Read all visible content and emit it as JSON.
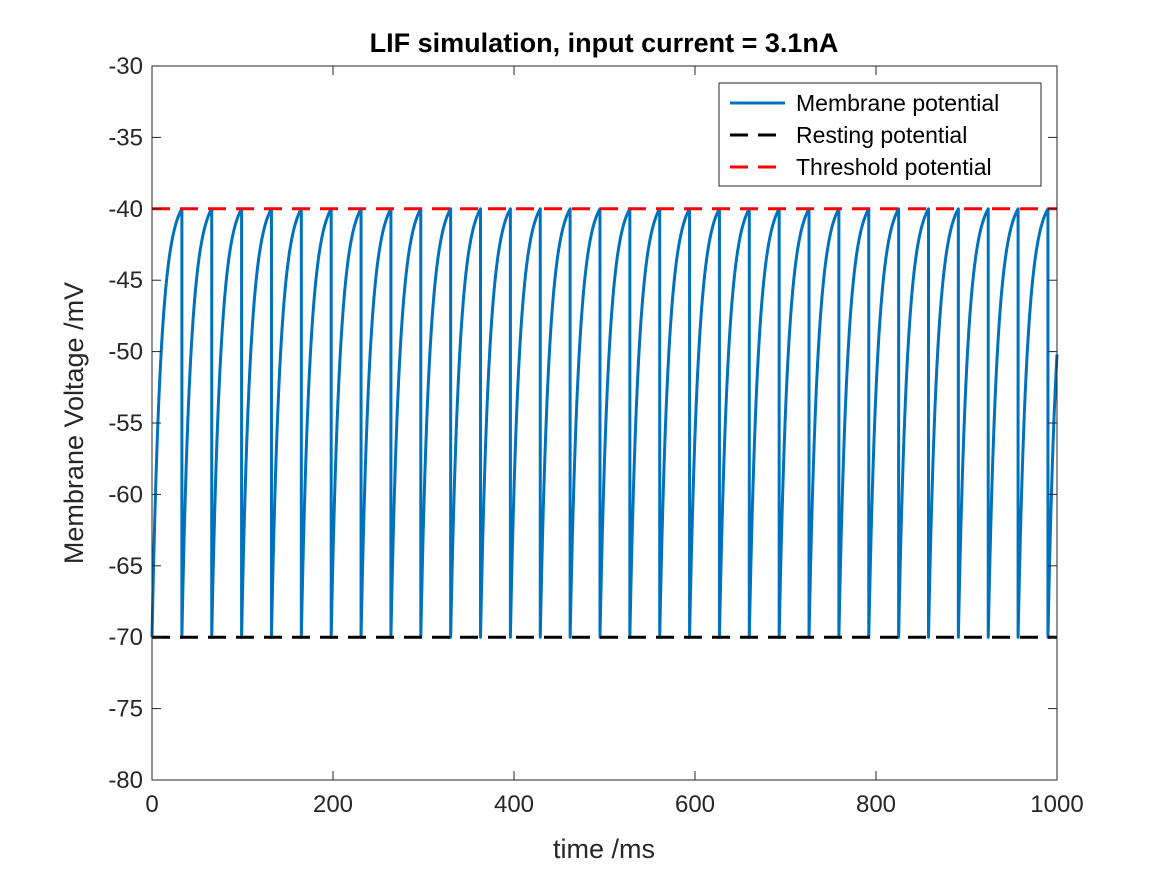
{
  "chart_data": {
    "type": "line",
    "title": "LIF simulation, input current = 3.1nA",
    "xlabel": "time /ms",
    "ylabel": "Membrane Voltage /mV",
    "xlim": [
      0,
      1000
    ],
    "ylim": [
      -80,
      -30
    ],
    "xticks": [
      0,
      200,
      400,
      600,
      800,
      1000
    ],
    "yticks": [
      -80,
      -75,
      -70,
      -65,
      -60,
      -55,
      -50,
      -45,
      -40,
      -35,
      -30
    ],
    "xtick_labels": [
      "0",
      "200",
      "400",
      "600",
      "800",
      "1000"
    ],
    "ytick_labels": [
      "-80",
      "-75",
      "-70",
      "-65",
      "-60",
      "-55",
      "-50",
      "-45",
      "-40",
      "-35",
      "-30"
    ],
    "grid": false,
    "legend_position": "top-right",
    "series": [
      {
        "name": "Membrane potential",
        "color": "#0072BD",
        "style": "solid",
        "spike_times": [
          33,
          66,
          99,
          132,
          165,
          198,
          231,
          264,
          297,
          330,
          363,
          396,
          429,
          462,
          495,
          528,
          561,
          594,
          627,
          660,
          693,
          726,
          759,
          792,
          825,
          858,
          891,
          924,
          957,
          990
        ],
        "reset_value": -70,
        "threshold_value": -40,
        "final_point": [
          1000,
          -50
        ]
      },
      {
        "name": "Resting potential",
        "color": "#000000",
        "style": "dashed",
        "x": [
          0,
          1000
        ],
        "y": [
          -70,
          -70
        ]
      },
      {
        "name": "Threshold potential",
        "color": "#FF0000",
        "style": "dashed",
        "x": [
          0,
          1000
        ],
        "y": [
          -40,
          -40
        ]
      }
    ]
  }
}
